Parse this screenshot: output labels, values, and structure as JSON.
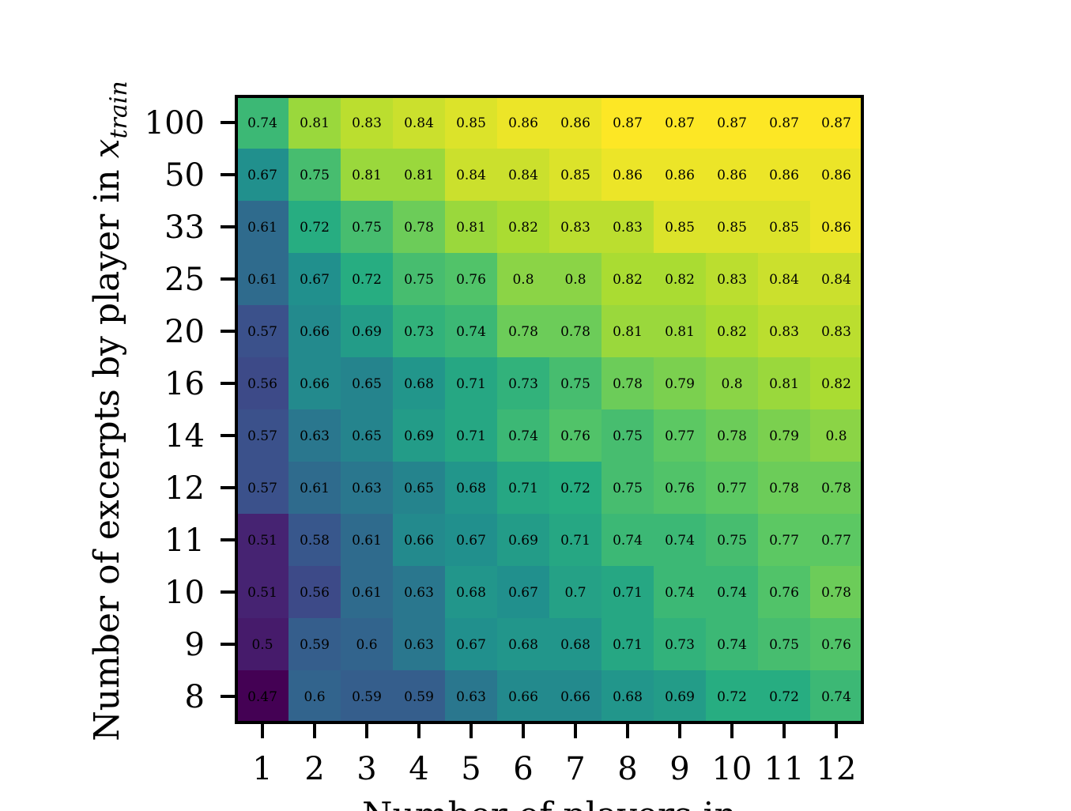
{
  "chart_data": {
    "type": "heatmap",
    "title": "",
    "xlabel": "Number of players in",
    "ylabel": "Number of excerpts by player in",
    "ylabel_math": {
      "base": "x",
      "subscript": "train"
    },
    "x": [
      "1",
      "2",
      "3",
      "4",
      "5",
      "6",
      "7",
      "8",
      "9",
      "10",
      "11",
      "12"
    ],
    "y": [
      "100",
      "50",
      "33",
      "25",
      "20",
      "16",
      "14",
      "12",
      "11",
      "10",
      "9",
      "8"
    ],
    "values": [
      [
        "0.74",
        "0.81",
        "0.83",
        "0.84",
        "0.85",
        "0.86",
        "0.86",
        "0.87",
        "0.87",
        "0.87",
        "0.87",
        "0.87"
      ],
      [
        "0.67",
        "0.75",
        "0.81",
        "0.81",
        "0.84",
        "0.84",
        "0.85",
        "0.86",
        "0.86",
        "0.86",
        "0.86",
        "0.86"
      ],
      [
        "0.61",
        "0.72",
        "0.75",
        "0.78",
        "0.81",
        "0.82",
        "0.83",
        "0.83",
        "0.85",
        "0.85",
        "0.85",
        "0.86"
      ],
      [
        "0.61",
        "0.67",
        "0.72",
        "0.75",
        "0.76",
        "0.8",
        "0.8",
        "0.82",
        "0.82",
        "0.83",
        "0.84",
        "0.84"
      ],
      [
        "0.57",
        "0.66",
        "0.69",
        "0.73",
        "0.74",
        "0.78",
        "0.78",
        "0.81",
        "0.81",
        "0.82",
        "0.83",
        "0.83"
      ],
      [
        "0.56",
        "0.66",
        "0.65",
        "0.68",
        "0.71",
        "0.73",
        "0.75",
        "0.78",
        "0.79",
        "0.8",
        "0.81",
        "0.82"
      ],
      [
        "0.57",
        "0.63",
        "0.65",
        "0.69",
        "0.71",
        "0.74",
        "0.76",
        "0.75",
        "0.77",
        "0.78",
        "0.79",
        "0.8"
      ],
      [
        "0.57",
        "0.61",
        "0.63",
        "0.65",
        "0.68",
        "0.71",
        "0.72",
        "0.75",
        "0.76",
        "0.77",
        "0.78",
        "0.78"
      ],
      [
        "0.51",
        "0.58",
        "0.61",
        "0.66",
        "0.67",
        "0.69",
        "0.71",
        "0.74",
        "0.74",
        "0.75",
        "0.77",
        "0.77"
      ],
      [
        "0.51",
        "0.56",
        "0.61",
        "0.63",
        "0.68",
        "0.67",
        "0.7",
        "0.71",
        "0.74",
        "0.74",
        "0.76",
        "0.78"
      ],
      [
        "0.5",
        "0.59",
        "0.6",
        "0.63",
        "0.67",
        "0.68",
        "0.68",
        "0.71",
        "0.73",
        "0.74",
        "0.75",
        "0.76"
      ],
      [
        "0.47",
        "0.6",
        "0.59",
        "0.59",
        "0.63",
        "0.66",
        "0.66",
        "0.68",
        "0.69",
        "0.72",
        "0.72",
        "0.74"
      ]
    ],
    "colormap": "viridis",
    "color_range": [
      0.47,
      0.87
    ],
    "grid": false,
    "legend": "none"
  }
}
